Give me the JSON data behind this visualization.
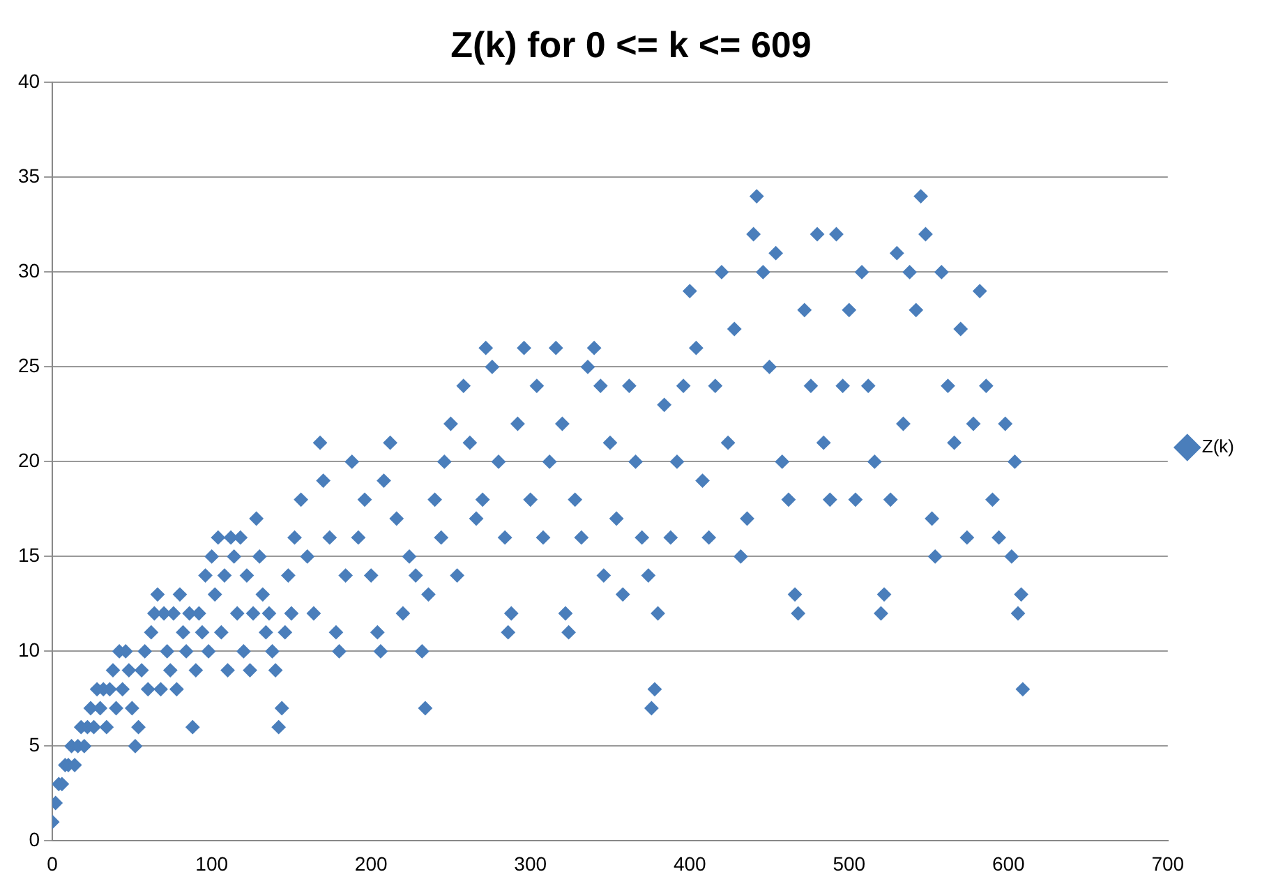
{
  "chart_data": {
    "type": "scatter",
    "title": "Z(k) for 0 <= k <= 609",
    "marker": "diamond",
    "grid": "y",
    "legend": "right",
    "xlim": [
      0,
      700
    ],
    "xticks": [
      0,
      100,
      200,
      300,
      400,
      500,
      600,
      700
    ],
    "ylim": [
      0,
      40
    ],
    "yticks": [
      0,
      5,
      10,
      15,
      20,
      25,
      30,
      35,
      40
    ],
    "series": [
      {
        "name": "Z(k)",
        "color": "#4a7ebb",
        "x": [
          0,
          2,
          4,
          6,
          8,
          10,
          12,
          14,
          16,
          18,
          20,
          22,
          24,
          26,
          28,
          30,
          32,
          34,
          36,
          38,
          40,
          42,
          44,
          46,
          48,
          50,
          52,
          54,
          56,
          58,
          60,
          62,
          64,
          66,
          68,
          70,
          72,
          74,
          76,
          78,
          80,
          82,
          84,
          86,
          88,
          90,
          92,
          94,
          96,
          98,
          100,
          102,
          104,
          106,
          108,
          110,
          112,
          114,
          116,
          118,
          120,
          122,
          124,
          126,
          128,
          130,
          132,
          134,
          136,
          138,
          140,
          142,
          144,
          146,
          148,
          150,
          152,
          156,
          160,
          164,
          168,
          170,
          174,
          178,
          180,
          184,
          188,
          192,
          196,
          200,
          204,
          206,
          208,
          212,
          216,
          220,
          224,
          228,
          232,
          234,
          236,
          240,
          244,
          246,
          250,
          254,
          258,
          262,
          266,
          270,
          272,
          276,
          280,
          284,
          286,
          288,
          292,
          296,
          300,
          304,
          308,
          312,
          316,
          320,
          322,
          324,
          328,
          332,
          336,
          340,
          344,
          346,
          350,
          354,
          358,
          362,
          366,
          370,
          374,
          376,
          378,
          380,
          384,
          388,
          392,
          396,
          400,
          404,
          408,
          412,
          416,
          420,
          424,
          428,
          432,
          436,
          440,
          442,
          446,
          450,
          454,
          458,
          462,
          466,
          468,
          472,
          476,
          480,
          484,
          488,
          492,
          496,
          500,
          504,
          508,
          512,
          516,
          520,
          522,
          526,
          530,
          534,
          538,
          542,
          545,
          548,
          552,
          554,
          558,
          562,
          566,
          570,
          574,
          578,
          582,
          586,
          590,
          594,
          598,
          602,
          604,
          606,
          608,
          609
        ],
        "values": [
          1,
          2,
          3,
          3,
          4,
          4,
          5,
          4,
          5,
          6,
          5,
          6,
          7,
          6,
          8,
          7,
          8,
          6,
          8,
          9,
          7,
          10,
          8,
          10,
          9,
          7,
          5,
          6,
          9,
          10,
          8,
          11,
          12,
          13,
          8,
          12,
          10,
          9,
          12,
          8,
          13,
          11,
          10,
          12,
          6,
          9,
          12,
          11,
          14,
          10,
          15,
          13,
          16,
          11,
          14,
          9,
          16,
          15,
          12,
          16,
          10,
          14,
          9,
          12,
          17,
          15,
          13,
          11,
          12,
          10,
          9,
          6,
          7,
          11,
          14,
          12,
          16,
          18,
          15,
          12,
          21,
          19,
          16,
          11,
          10,
          14,
          20,
          16,
          18,
          14,
          11,
          10,
          19,
          21,
          17,
          12,
          15,
          14,
          10,
          7,
          13,
          18,
          16,
          20,
          22,
          14,
          24,
          21,
          17,
          18,
          26,
          25,
          20,
          16,
          11,
          12,
          22,
          26,
          18,
          24,
          16,
          20,
          26,
          22,
          12,
          11,
          18,
          16,
          25,
          26,
          24,
          14,
          21,
          17,
          13,
          24,
          20,
          16,
          14,
          7,
          8,
          12,
          23,
          16,
          20,
          24,
          29,
          26,
          19,
          16,
          24,
          30,
          21,
          27,
          15,
          17,
          32,
          34,
          30,
          25,
          31,
          20,
          18,
          13,
          12,
          28,
          24,
          32,
          21,
          18,
          32,
          24,
          28,
          18,
          30,
          24,
          20,
          12,
          13,
          18,
          31,
          22,
          30,
          28,
          34,
          32,
          17,
          15,
          30,
          24,
          21,
          27,
          16,
          22,
          29,
          24,
          18,
          16,
          22,
          15,
          20,
          12,
          13,
          8
        ]
      }
    ]
  }
}
